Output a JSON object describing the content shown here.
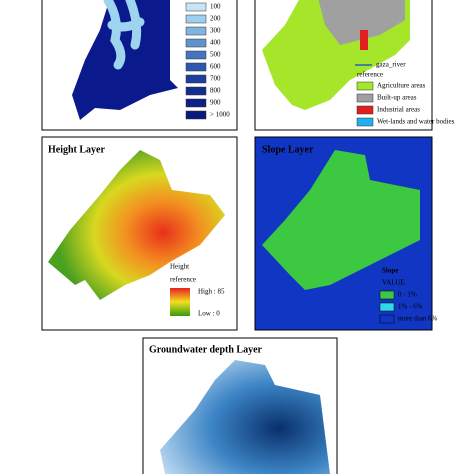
{
  "panels": [
    {
      "legend": [
        "100",
        "200",
        "300",
        "400",
        "500",
        "600",
        "700",
        "800",
        "900",
        "> 1000"
      ]
    },
    {
      "river": "gaza_river",
      "legend_title": "reference",
      "legend": [
        "Agriculture areas",
        "Built-up areas",
        "Industrial areas",
        "Wet-lands and water bodies"
      ]
    },
    {
      "title": "Height Layer",
      "legend_title": "Height",
      "legend_subtitle": "reference",
      "high": "High : 85",
      "low": "Low : 0"
    },
    {
      "title": "Slope Layer",
      "legend_title": "Slope",
      "legend_subtitle": "VALUE",
      "legend": [
        "0 - 1%",
        "1% - 6%",
        "more than 6%"
      ]
    },
    {
      "title": "Groundwater depth Layer"
    }
  ]
}
